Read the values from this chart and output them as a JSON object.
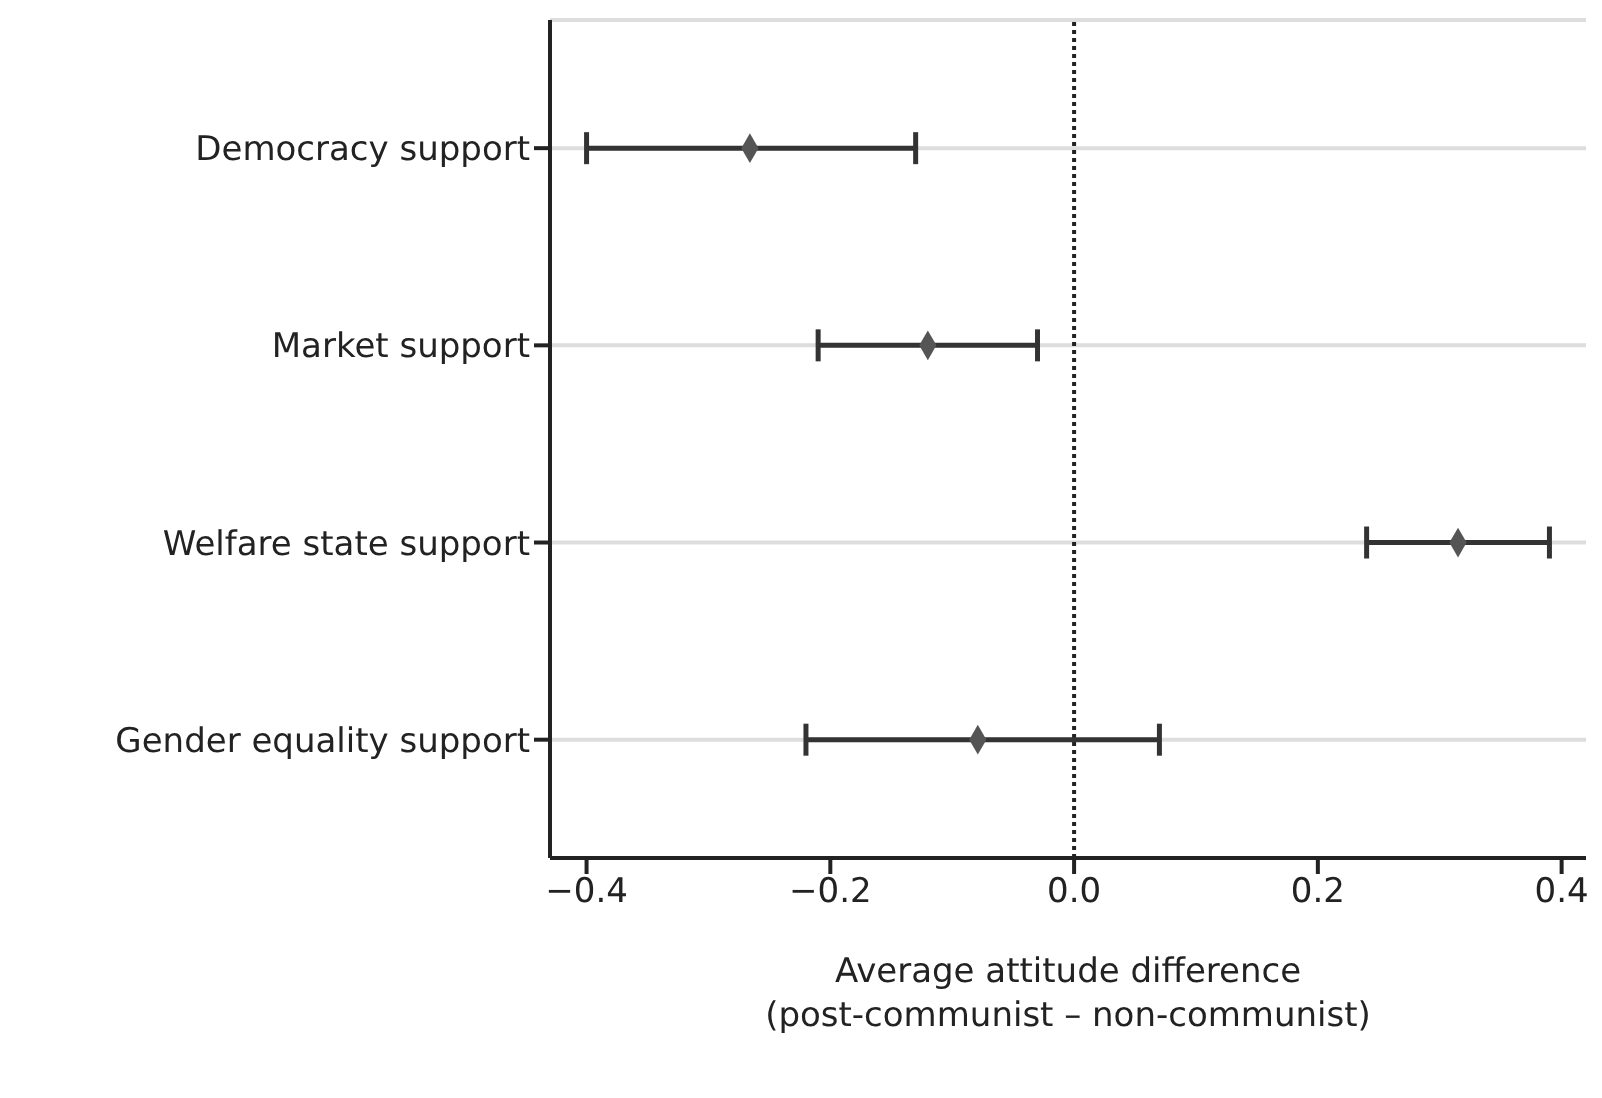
{
  "chart_data": {
    "type": "scatter",
    "orientation": "horizontal",
    "categories": [
      "Democracy support",
      "Market support",
      "Welfare state support",
      "Gender equality support"
    ],
    "values": [
      -0.266,
      -0.12,
      0.315,
      -0.079
    ],
    "errors": [
      [
        -0.4,
        -0.13
      ],
      [
        -0.21,
        -0.03
      ],
      [
        0.24,
        0.39
      ],
      [
        -0.22,
        0.07
      ]
    ],
    "color": "#555555",
    "marker": "diamond",
    "xlabel": "Average attitude difference\n(post-communist – non-communist)",
    "xlim": [
      -0.43,
      0.42
    ],
    "xticks": [
      {
        "value": -0.4,
        "label": "−0.4"
      },
      {
        "value": -0.2,
        "label": "−0.2"
      },
      {
        "value": 0,
        "label": "0.0"
      },
      0.2,
      0.4
    ],
    "grid": "y",
    "ref_lines": [
      {
        "axis": "x",
        "value": 0,
        "line_style": "dotted",
        "color": "#222222"
      }
    ],
    "legend": false
  }
}
